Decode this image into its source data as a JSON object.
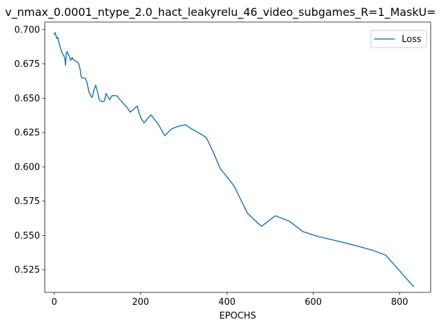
{
  "chart_data": {
    "type": "line",
    "title": "v_nmax_0.0001_ntype_2.0_hact_leakyrelu_46_video_subgames_R=1_MaskU=",
    "xlabel": "EPOCHS",
    "ylabel": "",
    "xlim": [
      -22,
      872
    ],
    "ylim": [
      0.5085,
      0.7055
    ],
    "xticks": [
      0,
      200,
      400,
      600,
      800
    ],
    "xtick_labels": [
      "0",
      "200",
      "400",
      "600",
      "800"
    ],
    "yticks": [
      0.525,
      0.55,
      0.575,
      0.6,
      0.625,
      0.65,
      0.675,
      0.7
    ],
    "ytick_labels": [
      "0.525",
      "0.550",
      "0.575",
      "0.600",
      "0.625",
      "0.650",
      "0.675",
      "0.700"
    ],
    "grid": false,
    "legend_position": "upper-right",
    "series": [
      {
        "name": "Loss",
        "color": "#1f77b4",
        "x": [
          0,
          2,
          4,
          6,
          8,
          10,
          12,
          14,
          16,
          18,
          20,
          22,
          24,
          26,
          28,
          30,
          32,
          34,
          36,
          38,
          40,
          42,
          44,
          48,
          52,
          56,
          60,
          62,
          64,
          68,
          72,
          76,
          80,
          84,
          88,
          92,
          96,
          100,
          104,
          110,
          116,
          120,
          128,
          134,
          140,
          146,
          152,
          160,
          168,
          176,
          184,
          192,
          200,
          208,
          216,
          224,
          240,
          256,
          272,
          288,
          304,
          320,
          336,
          352,
          368,
          384,
          416,
          448,
          480,
          512,
          544,
          576,
          608,
          640,
          672,
          704,
          736,
          768,
          800,
          832
        ],
        "y": [
          0.6965,
          0.6978,
          0.6955,
          0.6935,
          0.6945,
          0.6915,
          0.6895,
          0.6868,
          0.685,
          0.683,
          0.682,
          0.681,
          0.6795,
          0.674,
          0.683,
          0.684,
          0.682,
          0.6812,
          0.6795,
          0.6775,
          0.679,
          0.6795,
          0.678,
          0.6775,
          0.6765,
          0.6755,
          0.671,
          0.666,
          0.6648,
          0.6648,
          0.6645,
          0.6612,
          0.655,
          0.652,
          0.6505,
          0.656,
          0.6595,
          0.655,
          0.649,
          0.6475,
          0.6478,
          0.6535,
          0.649,
          0.6518,
          0.652,
          0.6515,
          0.649,
          0.6462,
          0.6435,
          0.6398,
          0.642,
          0.6442,
          0.636,
          0.632,
          0.6352,
          0.6378,
          0.6315,
          0.6227,
          0.6277,
          0.6296,
          0.6306,
          0.6273,
          0.6245,
          0.6214,
          0.611,
          0.599,
          0.5863,
          0.566,
          0.5566,
          0.5643,
          0.5605,
          0.5528,
          0.5495,
          0.5471,
          0.5447,
          0.5421,
          0.5393,
          0.5356,
          0.5242,
          0.5128
        ]
      }
    ]
  }
}
